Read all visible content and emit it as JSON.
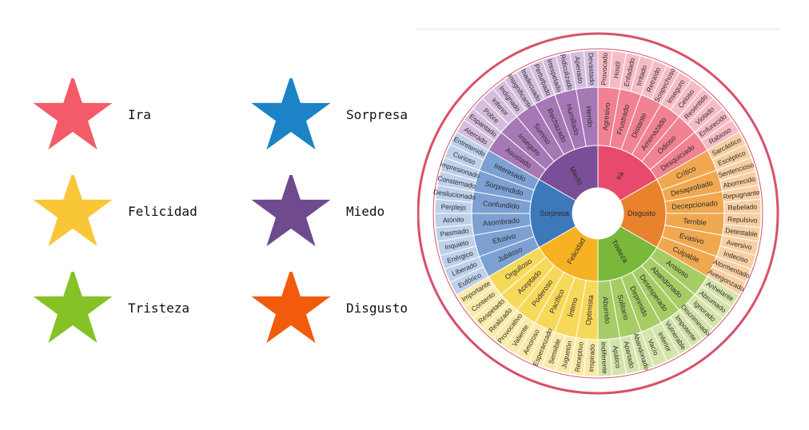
{
  "legend": [
    {
      "label": "Ira",
      "color": "#f45b69"
    },
    {
      "label": "Sorpresa",
      "color": "#1b83c6"
    },
    {
      "label": "Felicidad",
      "color": "#f9c638"
    },
    {
      "label": "Miedo",
      "color": "#6f4a8e"
    },
    {
      "label": "Tristeza",
      "color": "#84c226"
    },
    {
      "label": "Disgusto",
      "color": "#f25a0c"
    }
  ],
  "wheel": [
    {
      "name": "Ira",
      "color": "#e84a6d",
      "mid": "#f08292",
      "outer": "#f6bcc5",
      "secondary": [
        {
          "label": "Agresivo",
          "tertiary": [
            "Provocado",
            "Hostil"
          ]
        },
        {
          "label": "Frustrado",
          "tertiary": [
            "Enfadado",
            "Irritado"
          ]
        },
        {
          "label": "Distante",
          "tertiary": [
            "Retraído",
            "Sospechoso"
          ]
        },
        {
          "label": "Amenazado",
          "tertiary": [
            "Inseguro",
            "Celoso"
          ]
        },
        {
          "label": "Odioso",
          "tertiary": [
            "Resentido",
            "Violado"
          ]
        },
        {
          "label": "Desquiciado",
          "tertiary": [
            "Enfurecido",
            "Rabioso"
          ]
        }
      ]
    },
    {
      "name": "Disgusto",
      "color": "#e8822d",
      "mid": "#f0a850",
      "outer": "#f7cfa2",
      "secondary": [
        {
          "label": "Crítico",
          "tertiary": [
            "Sarcástico",
            "Escéptico"
          ]
        },
        {
          "label": "Desaprobado",
          "tertiary": [
            "Sentencioso",
            "Aborrecido"
          ]
        },
        {
          "label": "Decepcionado",
          "tertiary": [
            "Repugnante",
            "Rebelado"
          ]
        },
        {
          "label": "Terrible",
          "tertiary": [
            "Repulsivo",
            "Detestable"
          ]
        },
        {
          "label": "Evasivo",
          "tertiary": [
            "Aversivo",
            "Indeciso"
          ]
        },
        {
          "label": "Culpable",
          "tertiary": [
            "Atormentado",
            "Avergonzado"
          ]
        }
      ]
    },
    {
      "name": "Tristeza",
      "color": "#79b83a",
      "mid": "#a6cc66",
      "outer": "#d4e5ab",
      "secondary": [
        {
          "label": "Ansioso",
          "tertiary": [
            "Anhelante",
            "Abrumado"
          ]
        },
        {
          "label": "Abandonado",
          "tertiary": [
            "Ignorado",
            "Discriminado"
          ]
        },
        {
          "label": "Desesperado",
          "tertiary": [
            "Impotente",
            "Vulnerable"
          ]
        },
        {
          "label": "Deprimido",
          "tertiary": [
            "Inferior",
            "Vacío"
          ]
        },
        {
          "label": "Solitario",
          "tertiary": [
            "Abandonado",
            "Apartado"
          ]
        },
        {
          "label": "Aburrido",
          "tertiary": [
            "Apático",
            "Indiferente"
          ]
        }
      ]
    },
    {
      "name": "Felicidad",
      "color": "#f6b222",
      "mid": "#f7d95a",
      "outer": "#f9eaa8",
      "secondary": [
        {
          "label": "Optimista",
          "tertiary": [
            "Inspirado",
            "Receptivo"
          ]
        },
        {
          "label": "Íntimo",
          "tertiary": [
            "Juguetón",
            "Sensible"
          ]
        },
        {
          "label": "Pacífico",
          "tertiary": [
            "Esperanzado",
            "Amoroso"
          ]
        },
        {
          "label": "Poderoso",
          "tertiary": [
            "Valiente",
            "Provocativo"
          ]
        },
        {
          "label": "Aceptado",
          "tertiary": [
            "Realizado",
            "Respetado"
          ]
        },
        {
          "label": "Orgulloso",
          "tertiary": [
            "Contento",
            "Importante"
          ]
        }
      ]
    },
    {
      "name": "Sorpresa",
      "color": "#3d78b8",
      "mid": "#7ca0d1",
      "outer": "#bed0ea",
      "secondary": [
        {
          "label": "Jubiloso",
          "tertiary": [
            "Eufórico",
            "Liberado"
          ]
        },
        {
          "label": "Efusivo",
          "tertiary": [
            "Enérgico",
            "Inquieto"
          ]
        },
        {
          "label": "Asombrado",
          "tertiary": [
            "Pasmado",
            "Atónito"
          ]
        },
        {
          "label": "Confundido",
          "tertiary": [
            "Perplejo",
            "Desilucionado"
          ]
        },
        {
          "label": "Sorprendido",
          "tertiary": [
            "Consternado",
            "Impresionado"
          ]
        },
        {
          "label": "Interesado",
          "tertiary": [
            "Curioso",
            "Entretenido"
          ]
        }
      ]
    },
    {
      "name": "Miedo",
      "color": "#7a4f98",
      "mid": "#a678b5",
      "outer": "#d5bedd",
      "secondary": [
        {
          "label": "Asustado",
          "tertiary": [
            "Aterrado",
            "Espantado"
          ]
        },
        {
          "label": "Inseguro",
          "tertiary": [
            "Pobre",
            "Inferior"
          ]
        },
        {
          "label": "Sumiso",
          "tertiary": [
            "Indignado",
            "Insignificante"
          ]
        },
        {
          "label": "Rechazado",
          "tertiary": [
            "Inadecuado",
            "Perturbado"
          ]
        },
        {
          "label": "Humillado",
          "tertiary": [
            "Irrespetado",
            "Ridiculizado"
          ]
        },
        {
          "label": "Herido",
          "tertiary": [
            "Apenado",
            "Devastado"
          ]
        }
      ]
    }
  ]
}
